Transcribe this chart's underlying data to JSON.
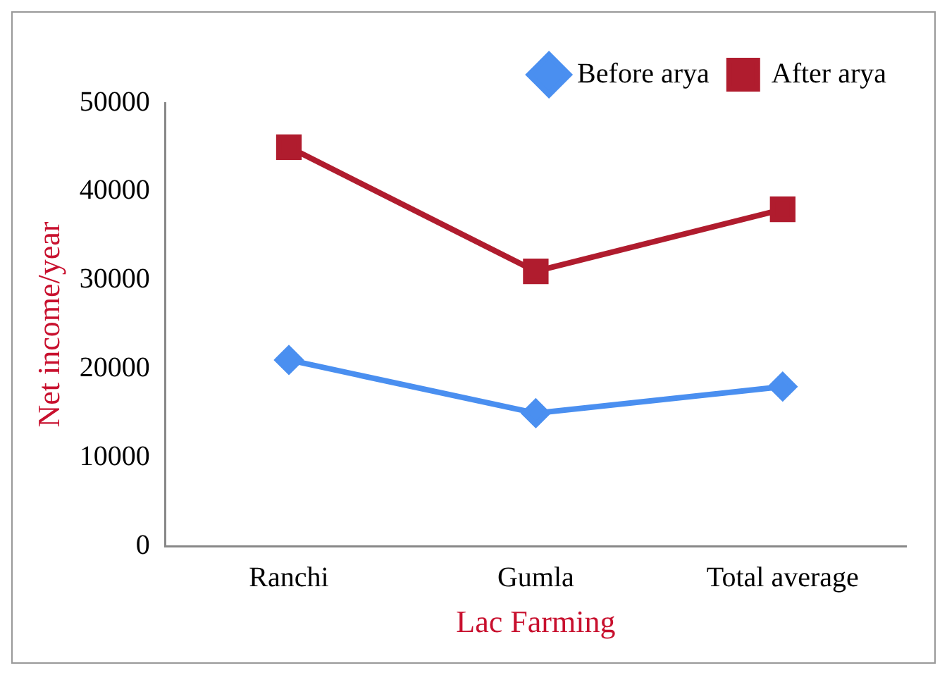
{
  "chart_data": {
    "type": "line",
    "xlabel": "Lac Farming",
    "ylabel": "Net income/year",
    "categories": [
      "Ranchi",
      "Gumla",
      "Total average"
    ],
    "series": [
      {
        "name": "Before arya",
        "color": "#4a8ff0",
        "marker": "diamond",
        "values": [
          21000,
          15000,
          18000
        ]
      },
      {
        "name": "After arya",
        "color": "#b01c2e",
        "marker": "square",
        "values": [
          45000,
          31000,
          38000
        ]
      }
    ],
    "ylim": [
      0,
      50000
    ],
    "yticks": [
      0,
      10000,
      20000,
      30000,
      40000,
      50000
    ],
    "grid": false,
    "legend": "top right",
    "line_style": "solid"
  }
}
